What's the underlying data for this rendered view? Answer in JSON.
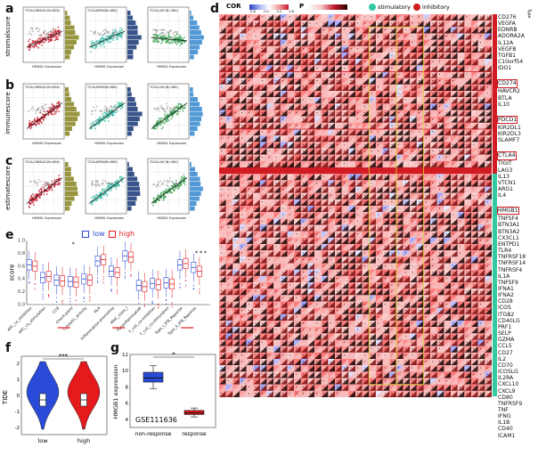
{
  "panels": {
    "a": "a",
    "b": "b",
    "c": "c",
    "d": "d",
    "e": "e",
    "f": "f",
    "g": "g"
  },
  "scatter": {
    "x_label": "HMGB1 Expression",
    "row_labels": [
      "stromalscore",
      "immunescore",
      "estimatescore"
    ],
    "colors": {
      "red": "#c4182a",
      "teal": "#35b9a3",
      "green": "#2f9e4a",
      "olive": "#8c8a2a",
      "navy": "#23407e",
      "blue": "#3f8ed1"
    },
    "cohorts": [
      "TCGA-GBMLGG",
      "TCGA-KIPAN",
      "TCGA-LIHC"
    ],
    "stats": [
      [
        "TCGA-GBMLGG(N=656)",
        "TCGA-KIPAN(N=880)",
        "TCGA-LIHC(N=360)"
      ],
      [
        "TCGA-GBMLGG(N=656)",
        "TCGA-KIPAN(N=880)",
        "TCGA-LIHC(N=360)"
      ],
      [
        "TCGA-GBMLGG(N=656)",
        "TCGA-KIPAN(N=880)",
        "TCGA-LIHC(N=360)"
      ]
    ]
  },
  "legend_d": {
    "cor_label": "COR",
    "p_label": "P",
    "stimulatory": "stimulatory",
    "inhibitory": "inhibitory",
    "cor_ticks": [
      "-0.6",
      "-0.2",
      "0.2",
      "0.6"
    ],
    "type_label": "Type"
  },
  "genes_d": [
    "CD276",
    "VEGFA",
    "EDNRB",
    "ADORA2A",
    "IL12A",
    "VEGFB",
    "TGFB1",
    "C10orf54",
    "IDO1",
    "CD274",
    "HAVCR2",
    "BTLA",
    "IL10",
    "PDCD1",
    "KIR2DL1",
    "KIR2DL3",
    "SLAMF7",
    "CTLA4",
    "TIGIT",
    "LAG3",
    "IL13",
    "VTCN1",
    "ARG1",
    "IL4",
    "HMGB1",
    "TNFSF4",
    "BTN3A1",
    "BTN3A2",
    "CX3CL1",
    "ENTPD1",
    "TLR4",
    "TNFRSF18",
    "TNFRSF14",
    "TNFRSF4",
    "IL1A",
    "TNFSF9",
    "IFNA1",
    "IFNA2",
    "CD28",
    "ICOS",
    "ITGB2",
    "CD40LG",
    "PRF1",
    "SELP",
    "GZMA",
    "CCL5",
    "CD27",
    "IL2",
    "CD70",
    "ICOSLG",
    "IL2RA",
    "CXCL10",
    "CXCL9",
    "CD80",
    "TNFRSF9",
    "TNF",
    "IFNG",
    "IL1B",
    "CD40",
    "ICAM1"
  ],
  "boxed_genes": [
    "CD274",
    "PDCD1",
    "CTLA4",
    "HMGB1"
  ],
  "panel_e": {
    "legend": [
      "low",
      "high"
    ],
    "ylabel": "score",
    "yticks": [
      "1.0",
      "0.8",
      "0.6",
      "0.4",
      "0.2",
      "0.0"
    ],
    "categories": [
      "APC_co_inhibition",
      "APC_co_stimulation",
      "CCR",
      "Check-point",
      "Cytolytic_activity",
      "HLA",
      "Inflammation-promoting",
      "MHC_class_I",
      "Parainflammation",
      "T_cell_co-inhibition",
      "T_cell_co-stimulation",
      "Type_I_IFN_Reponse",
      "Type_II_IFN_Reponse"
    ],
    "low_median": [
      0.62,
      0.42,
      0.38,
      0.36,
      0.4,
      0.68,
      0.52,
      0.76,
      0.3,
      0.33,
      0.34,
      0.62,
      0.58
    ],
    "high_median": [
      0.6,
      0.44,
      0.37,
      0.35,
      0.38,
      0.7,
      0.5,
      0.74,
      0.28,
      0.31,
      0.32,
      0.64,
      0.52
    ],
    "star": "*",
    "stars_right": "* * *"
  },
  "panel_f": {
    "ylabel": "TIDE",
    "yticks": [
      "2",
      "1",
      "0",
      "-1",
      "-2"
    ],
    "groups": [
      "low",
      "high"
    ],
    "sig": "***"
  },
  "panel_g": {
    "ylabel": "HMGB1 expression",
    "yticks": [
      "12",
      "10",
      "8",
      "6",
      "4"
    ],
    "groups": [
      "non-response",
      "response"
    ],
    "dataset": "GSE111636",
    "sig": "*",
    "non_response": {
      "median": 9.1,
      "q1": 8.6,
      "q3": 9.8,
      "min": 7.8,
      "max": 10.6
    },
    "response": {
      "median": 4.8,
      "q1": 4.6,
      "q3": 5.1,
      "min": 4.3,
      "max": 5.4
    }
  },
  "colors": {
    "low": "#2a4bd7",
    "high": "#e41a1c"
  }
}
